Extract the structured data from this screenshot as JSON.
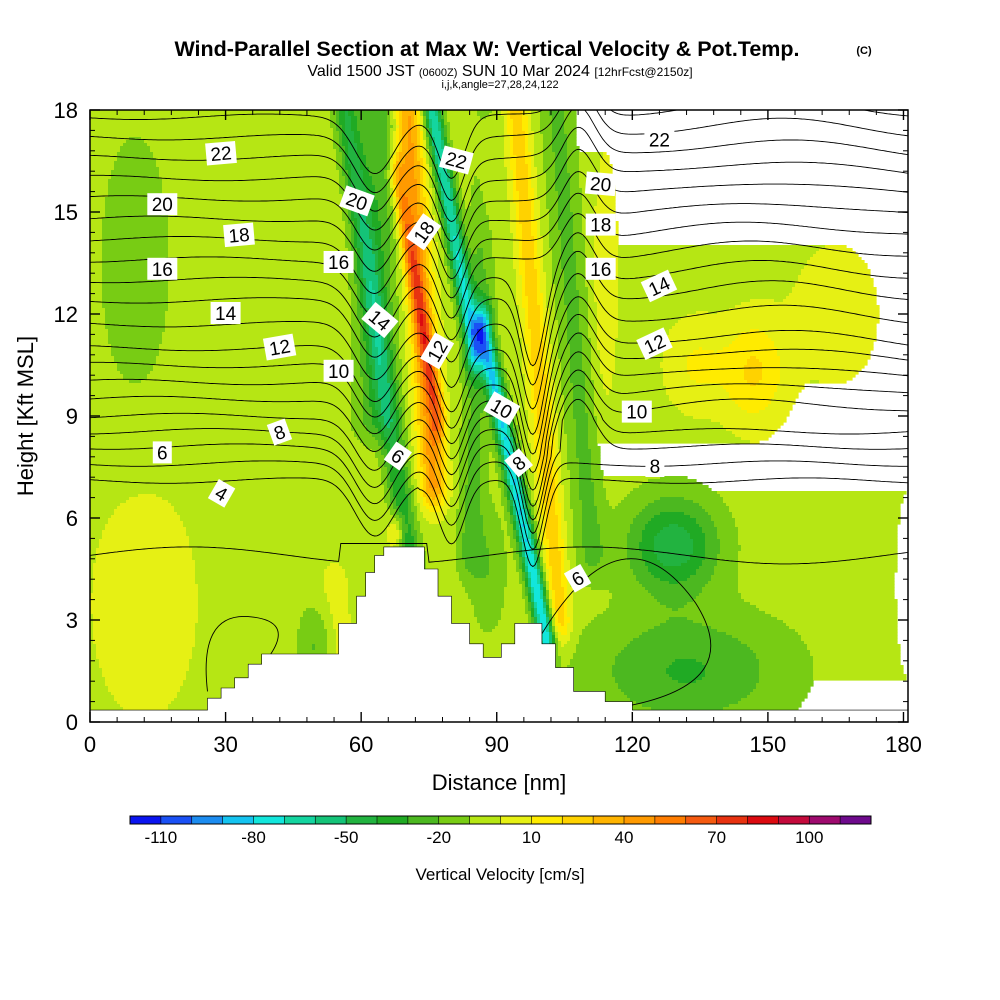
{
  "title": {
    "main": "Wind-Parallel Section at Max W: Vertical Velocity & Pot.Temp.",
    "copyright": "(C)",
    "valid_a": "Valid 1500 JST",
    "valid_utc": "(0600Z)",
    "valid_b": "SUN 10 Mar 2024",
    "forecast": "[12hrFcst@2150z]",
    "section_info": "i,j,k,angle=27,28,24,122"
  },
  "colors": {
    "background": "#ffffff",
    "terrain": "#ffffff",
    "contour": "#000000",
    "axis": "#000000"
  },
  "chart_data": {
    "type": "heatmap",
    "subtype": "vertical cross-section with filled contours (vertical velocity) and line contours (potential temperature)",
    "xlabel": "Distance [nm]",
    "ylabel": "Height [Kft MSL]",
    "xlim": [
      0,
      181
    ],
    "ylim": [
      0,
      18
    ],
    "x_ticks": [
      0,
      30,
      60,
      90,
      120,
      150,
      180
    ],
    "y_ticks": [
      0,
      3,
      6,
      9,
      12,
      15,
      18
    ],
    "grid": false,
    "colorbar": {
      "label": "Vertical Velocity [cm/s]",
      "placement": "bottom",
      "tick_values": [
        -110,
        -80,
        -50,
        -20,
        10,
        40,
        70,
        100
      ],
      "levels": [
        -120,
        -110,
        -100,
        -90,
        -80,
        -70,
        -60,
        -50,
        -40,
        -30,
        -20,
        -10,
        0,
        10,
        20,
        30,
        40,
        50,
        60,
        70,
        80,
        90,
        100,
        110
      ],
      "colors": [
        "#0a14f0",
        "#1a50f5",
        "#1c8cf0",
        "#14c3f0",
        "#12e6dc",
        "#14d5a0",
        "#14c378",
        "#22b340",
        "#20aa24",
        "#4cb820",
        "#78cc14",
        "#b6e614",
        "#e6f014",
        "#ffeb00",
        "#ffd200",
        "#ffb400",
        "#ff9a00",
        "#ff7d00",
        "#f55a10",
        "#e83210",
        "#dc0a10",
        "#c40a3c",
        "#9e0a6e",
        "#6e0a8c"
      ]
    },
    "terrain": [
      [
        0,
        0.35
      ],
      [
        26,
        0.35
      ],
      [
        26,
        0.7
      ],
      [
        29,
        0.7
      ],
      [
        29,
        1
      ],
      [
        32,
        1
      ],
      [
        32,
        1.3
      ],
      [
        35,
        1.3
      ],
      [
        35,
        1.7
      ],
      [
        38,
        1.7
      ],
      [
        38,
        2
      ],
      [
        55,
        2
      ],
      [
        55,
        2.9
      ],
      [
        59,
        2.9
      ],
      [
        59,
        3.7
      ],
      [
        61,
        3.7
      ],
      [
        61,
        4.4
      ],
      [
        63,
        4.4
      ],
      [
        63,
        4.9
      ],
      [
        65,
        4.9
      ],
      [
        65,
        5.15
      ],
      [
        74,
        5.15
      ],
      [
        74,
        4.5
      ],
      [
        77,
        4.5
      ],
      [
        77,
        3.7
      ],
      [
        80,
        3.7
      ],
      [
        80,
        2.9
      ],
      [
        84,
        2.9
      ],
      [
        84,
        2.3
      ],
      [
        87,
        2.3
      ],
      [
        87,
        1.9
      ],
      [
        91,
        1.9
      ],
      [
        91,
        2.3
      ],
      [
        94,
        2.3
      ],
      [
        94,
        2.9
      ],
      [
        100,
        2.9
      ],
      [
        100,
        2.3
      ],
      [
        103,
        2.3
      ],
      [
        103,
        1.6
      ],
      [
        107,
        1.6
      ],
      [
        107,
        0.9
      ],
      [
        114,
        0.9
      ],
      [
        114,
        0.6
      ],
      [
        120,
        0.6
      ],
      [
        120,
        0.35
      ],
      [
        181,
        0.35
      ]
    ],
    "w_field": {
      "background": -5,
      "features": [
        {
          "kind": "plume",
          "base_x": 63,
          "top_x": 64,
          "sigma_x": 4.5,
          "y0": 9,
          "y1": 18.5,
          "w": -22
        },
        {
          "kind": "plume",
          "base_x": 71,
          "top_x": 56,
          "sigma_x": 2.6,
          "y0": 4.5,
          "y1": 18.5,
          "w": -35
        },
        {
          "kind": "plume",
          "base_x": 76,
          "top_x": 70,
          "sigma_x": 3.0,
          "y0": 7,
          "y1": 18.5,
          "w": 48
        },
        {
          "kind": "plume",
          "base_x": 77,
          "top_x": 68,
          "sigma_x": 1.7,
          "y0": 9,
          "y1": 16,
          "w": 38
        },
        {
          "kind": "plume",
          "base_x": 85,
          "top_x": 75,
          "sigma_x": 2.0,
          "y0": 11,
          "y1": 18.5,
          "w": -65
        },
        {
          "kind": "plume",
          "base_x": 84,
          "top_x": 88,
          "sigma_x": 2.8,
          "y0": 5,
          "y1": 18.5,
          "w": -18
        },
        {
          "kind": "plume",
          "base_x": 101,
          "top_x": 87,
          "sigma_x": 2.0,
          "y0": 2.5,
          "y1": 11.5,
          "w": -75
        },
        {
          "kind": "plume",
          "base_x": 104,
          "top_x": 94,
          "sigma_x": 2.5,
          "y0": 3,
          "y1": 18.5,
          "w": 32
        },
        {
          "kind": "plume",
          "base_x": 111,
          "top_x": 103,
          "sigma_x": 3.5,
          "y0": 5,
          "y1": 18.5,
          "w": -18
        },
        {
          "kind": "plume",
          "base_x": 57,
          "top_x": 54,
          "sigma_x": 3.5,
          "y0": 0,
          "y1": 4,
          "w": 10
        },
        {
          "kind": "blob",
          "x": 129,
          "y": 5.2,
          "sx": 10,
          "sy": 1.4,
          "w": -42
        },
        {
          "kind": "blob",
          "x": 132,
          "y": 1.5,
          "sx": 22,
          "sy": 1.7,
          "w": -26
        },
        {
          "kind": "blob",
          "x": 147,
          "y": 10.3,
          "sx": 7,
          "sy": 1.6,
          "w": 26
        },
        {
          "kind": "blob",
          "x": 134,
          "y": 10.5,
          "sx": 7,
          "sy": 1.4,
          "w": 16
        },
        {
          "kind": "blob",
          "x": 165,
          "y": 12.0,
          "sx": 10,
          "sy": 2.2,
          "w": 12
        },
        {
          "kind": "blob",
          "x": 12,
          "y": 3.5,
          "sx": 12,
          "sy": 3.5,
          "w": 13
        },
        {
          "kind": "blob",
          "x": 10,
          "y": 13.5,
          "sx": 8,
          "sy": 4,
          "w": -12
        },
        {
          "kind": "blob",
          "x": 88,
          "y": 4.5,
          "sx": 4,
          "sy": 1.8,
          "w": -14
        },
        {
          "kind": "blob",
          "x": 68,
          "y": 5.6,
          "sx": 2,
          "sy": 0.6,
          "w": 28
        },
        {
          "kind": "blob",
          "x": 50,
          "y": 2.2,
          "sx": 4,
          "sy": 1.2,
          "w": -16
        },
        {
          "kind": "blob",
          "x": 88,
          "y": 16.5,
          "sx": 2.5,
          "sy": 2,
          "w": 20
        },
        {
          "kind": "blob",
          "x": 114,
          "y": 13.0,
          "sx": 3,
          "sy": 4,
          "w": 12
        },
        {
          "kind": "blob",
          "x": 181,
          "y": 4.0,
          "sx": 3,
          "sy": 3,
          "w": 12
        }
      ]
    },
    "theta_contours": {
      "levels": [
        4,
        5,
        6,
        7,
        8,
        9,
        10,
        11,
        12,
        13,
        14,
        15,
        16,
        17,
        18,
        19,
        20,
        21,
        22,
        23
      ],
      "baseline_height": {
        "4": 7.1,
        "5": 7.6,
        "6": 8.1,
        "7": 8.55,
        "8": 9.0,
        "9": 9.5,
        "10": 10.0,
        "11": 10.5,
        "12": 11.0,
        "13": 11.7,
        "14": 12.4,
        "15": 13.0,
        "16": 13.6,
        "17": 14.2,
        "18": 14.8,
        "19": 15.4,
        "20": 16.0,
        "21": 16.6,
        "22": 17.2,
        "23": 17.8
      },
      "perturbations": [
        {
          "x": 63,
          "width": 6,
          "dy": -1.6,
          "y_low": 7,
          "y_high": 18
        },
        {
          "x": 80,
          "width": 4,
          "dy": -1.8,
          "y_low": 7,
          "y_high": 18
        },
        {
          "x": 98,
          "width": 3.5,
          "dy": -2.6,
          "y_low": 6,
          "y_high": 13
        },
        {
          "x": 108,
          "width": 5,
          "dy": 1.4,
          "y_low": 8,
          "y_high": 18
        },
        {
          "x": 150,
          "width": 25,
          "dy": 0.5,
          "y_low": 9,
          "y_high": 18
        }
      ],
      "labels": [
        {
          "text": "22",
          "x": 29,
          "y": 16.7,
          "angle": -5
        },
        {
          "text": "20",
          "x": 16,
          "y": 15.2,
          "angle": 0
        },
        {
          "text": "18",
          "x": 33,
          "y": 14.3,
          "angle": -5
        },
        {
          "text": "16",
          "x": 16,
          "y": 13.3,
          "angle": 0
        },
        {
          "text": "14",
          "x": 30,
          "y": 12.0,
          "angle": 0
        },
        {
          "text": "12",
          "x": 42,
          "y": 11.0,
          "angle": -10
        },
        {
          "text": "10",
          "x": 55,
          "y": 10.3,
          "angle": 0
        },
        {
          "text": "8",
          "x": 42,
          "y": 8.5,
          "angle": -20
        },
        {
          "text": "6",
          "x": 16,
          "y": 7.9,
          "angle": 0
        },
        {
          "text": "4",
          "x": 29,
          "y": 6.7,
          "angle": 30
        },
        {
          "text": "20",
          "x": 59,
          "y": 15.3,
          "angle": 20
        },
        {
          "text": "16",
          "x": 55,
          "y": 13.5,
          "angle": 0
        },
        {
          "text": "14",
          "x": 64,
          "y": 11.8,
          "angle": 40
        },
        {
          "text": "6",
          "x": 68,
          "y": 7.8,
          "angle": 35
        },
        {
          "text": "22",
          "x": 81,
          "y": 16.5,
          "angle": 15
        },
        {
          "text": "18",
          "x": 74,
          "y": 14.4,
          "angle": -55
        },
        {
          "text": "12",
          "x": 77,
          "y": 10.9,
          "angle": -60
        },
        {
          "text": "10",
          "x": 91,
          "y": 9.2,
          "angle": 30
        },
        {
          "text": "8",
          "x": 95,
          "y": 7.6,
          "angle": -40
        },
        {
          "text": "6",
          "x": 108,
          "y": 4.2,
          "angle": -30
        },
        {
          "text": "22",
          "x": 126,
          "y": 17.1,
          "angle": 0
        },
        {
          "text": "20",
          "x": 113,
          "y": 15.8,
          "angle": 5
        },
        {
          "text": "18",
          "x": 113,
          "y": 14.6,
          "angle": 0
        },
        {
          "text": "16",
          "x": 113,
          "y": 13.3,
          "angle": 0
        },
        {
          "text": "14",
          "x": 126,
          "y": 12.8,
          "angle": -25
        },
        {
          "text": "12",
          "x": 125,
          "y": 11.1,
          "angle": -25
        },
        {
          "text": "10",
          "x": 121,
          "y": 9.1,
          "angle": 0
        },
        {
          "text": "8",
          "x": 125,
          "y": 7.5,
          "angle": 0
        }
      ]
    }
  }
}
